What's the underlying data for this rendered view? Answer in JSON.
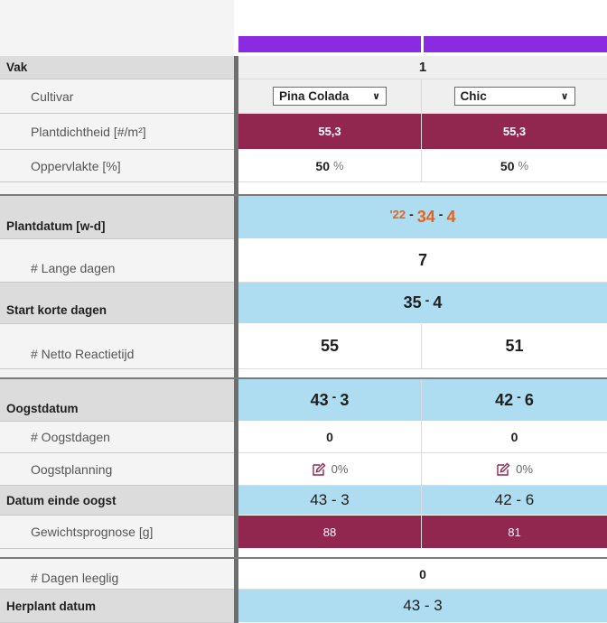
{
  "header": {
    "vak_label": "Vak",
    "vak_value": "1"
  },
  "colors": {
    "accent_purple": "#8a2be2",
    "maroon": "#91274e",
    "light_blue": "#aedcf0",
    "orange": "#e2641f"
  },
  "rows": {
    "cultivar": {
      "label": "Cultivar",
      "col1": "Pina Colada",
      "col2": "Chic"
    },
    "plantdichtheid": {
      "label": "Plantdichtheid [#/m²]",
      "col1": "55,3",
      "col2": "55,3"
    },
    "oppervlakte": {
      "label": "Oppervlakte [%]",
      "col1": "50",
      "col2": "50",
      "unit": "%"
    },
    "plantdatum": {
      "label": "Plantdatum [w-d]",
      "year": "'22",
      "week": "34",
      "day": "4"
    },
    "lange_dagen": {
      "label": "# Lange dagen",
      "value": "7"
    },
    "start_korte": {
      "label": "Start korte dagen",
      "week": "35",
      "day": "4"
    },
    "netto": {
      "label": "# Netto Reactietijd",
      "col1": "55",
      "col2": "51"
    },
    "oogstdatum": {
      "label": "Oogstdatum",
      "col1_week": "43",
      "col1_day": "3",
      "col2_week": "42",
      "col2_day": "6"
    },
    "oogstdagen": {
      "label": "# Oogstdagen",
      "col1": "0",
      "col2": "0"
    },
    "oogstplanning": {
      "label": "Oogstplanning",
      "col1": "0%",
      "col2": "0%",
      "icon": "edit-icon"
    },
    "einde_oogst": {
      "label": "Datum einde oogst",
      "col1": "43 - 3",
      "col2": "42 - 6"
    },
    "gewicht": {
      "label": "Gewichtsprognose [g]",
      "col1": "88",
      "col2": "81"
    },
    "leeglig": {
      "label": "# Dagen leeglig",
      "value": "0"
    },
    "herplant": {
      "label": "Herplant datum",
      "value": "43 - 3"
    }
  }
}
